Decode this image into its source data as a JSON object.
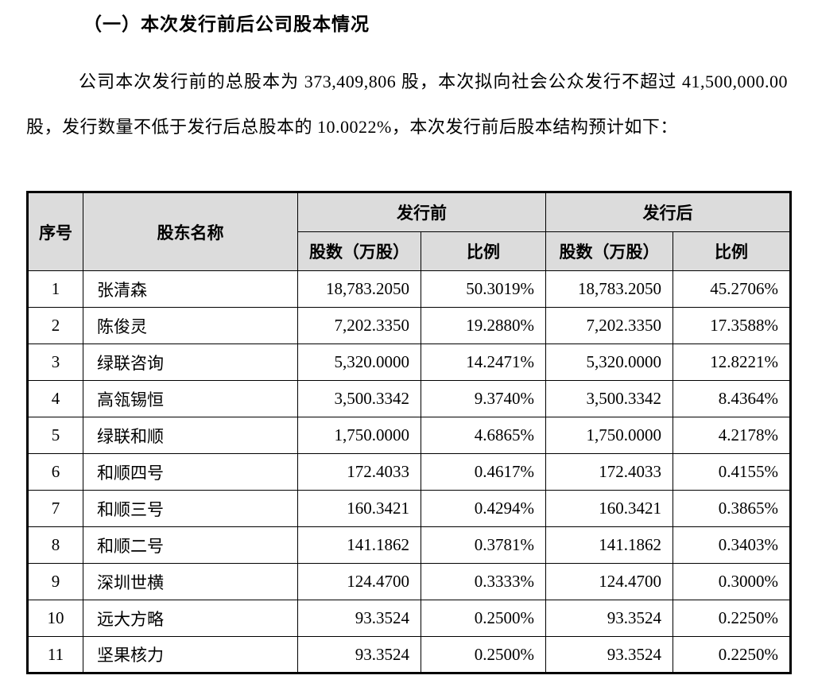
{
  "colors": {
    "header_bg": "#dcdcdc",
    "text": "#000000",
    "border": "#000000"
  },
  "page": {
    "section_title": "（一）本次发行前后公司股本情况",
    "intro_paragraph": "公司本次发行前的总股本为 373,409,806 股，本次拟向社会公众发行不超过 41,500,000.00 股，发行数量不低于发行后总股本的 10.0022%，本次发行前后股本结构预计如下："
  },
  "table": {
    "headers": {
      "seq": "序号",
      "shareholder": "股东名称",
      "pre_issue": "发行前",
      "post_issue": "发行后",
      "shares": "股数（万股）",
      "ratio": "比例"
    },
    "rows": [
      {
        "no": "1",
        "name": "张清森",
        "pre_shares": "18,783.2050",
        "pre_ratio": "50.3019%",
        "post_shares": "18,783.2050",
        "post_ratio": "45.2706%"
      },
      {
        "no": "2",
        "name": "陈俊灵",
        "pre_shares": "7,202.3350",
        "pre_ratio": "19.2880%",
        "post_shares": "7,202.3350",
        "post_ratio": "17.3588%"
      },
      {
        "no": "3",
        "name": "绿联咨询",
        "pre_shares": "5,320.0000",
        "pre_ratio": "14.2471%",
        "post_shares": "5,320.0000",
        "post_ratio": "12.8221%"
      },
      {
        "no": "4",
        "name": "高瓴锡恒",
        "pre_shares": "3,500.3342",
        "pre_ratio": "9.3740%",
        "post_shares": "3,500.3342",
        "post_ratio": "8.4364%"
      },
      {
        "no": "5",
        "name": "绿联和顺",
        "pre_shares": "1,750.0000",
        "pre_ratio": "4.6865%",
        "post_shares": "1,750.0000",
        "post_ratio": "4.2178%"
      },
      {
        "no": "6",
        "name": "和顺四号",
        "pre_shares": "172.4033",
        "pre_ratio": "0.4617%",
        "post_shares": "172.4033",
        "post_ratio": "0.4155%"
      },
      {
        "no": "7",
        "name": "和顺三号",
        "pre_shares": "160.3421",
        "pre_ratio": "0.4294%",
        "post_shares": "160.3421",
        "post_ratio": "0.3865%"
      },
      {
        "no": "8",
        "name": "和顺二号",
        "pre_shares": "141.1862",
        "pre_ratio": "0.3781%",
        "post_shares": "141.1862",
        "post_ratio": "0.3403%"
      },
      {
        "no": "9",
        "name": "深圳世横",
        "pre_shares": "124.4700",
        "pre_ratio": "0.3333%",
        "post_shares": "124.4700",
        "post_ratio": "0.3000%"
      },
      {
        "no": "10",
        "name": "远大方略",
        "pre_shares": "93.3524",
        "pre_ratio": "0.2500%",
        "post_shares": "93.3524",
        "post_ratio": "0.2250%"
      },
      {
        "no": "11",
        "name": "坚果核力",
        "pre_shares": "93.3524",
        "pre_ratio": "0.2500%",
        "post_shares": "93.3524",
        "post_ratio": "0.2250%"
      }
    ]
  }
}
